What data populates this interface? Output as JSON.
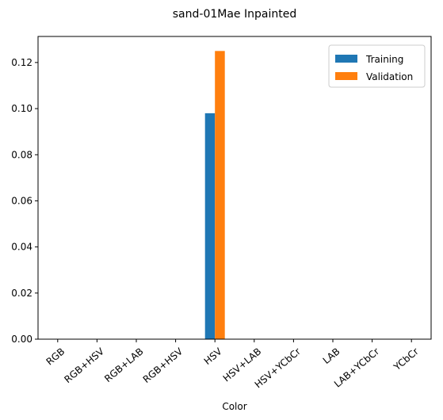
{
  "chart_data": {
    "type": "bar",
    "title": "sand-01Mae Inpainted",
    "xlabel": "Color",
    "ylabel": "",
    "categories": [
      "RGB",
      "RGB+HSV",
      "RGB+LAB",
      "RGB+HSV",
      "HSV",
      "HSV+LAB",
      "HSV+YCbCr",
      "LAB",
      "LAB+YCbCr",
      "YCbCr"
    ],
    "series": [
      {
        "name": "Training",
        "color": "#1f77b4",
        "values": [
          0,
          0,
          0,
          0,
          0.098,
          0,
          0,
          0,
          0,
          0
        ]
      },
      {
        "name": "Validation",
        "color": "#ff7f0e",
        "values": [
          0,
          0,
          0,
          0,
          0.125,
          0,
          0,
          0,
          0,
          0
        ]
      }
    ],
    "ylim": [
      0,
      0.1313
    ],
    "yticks": [
      "0.00",
      "0.02",
      "0.04",
      "0.06",
      "0.08",
      "0.10",
      "0.12"
    ],
    "grid": false,
    "legend": "top-right"
  }
}
